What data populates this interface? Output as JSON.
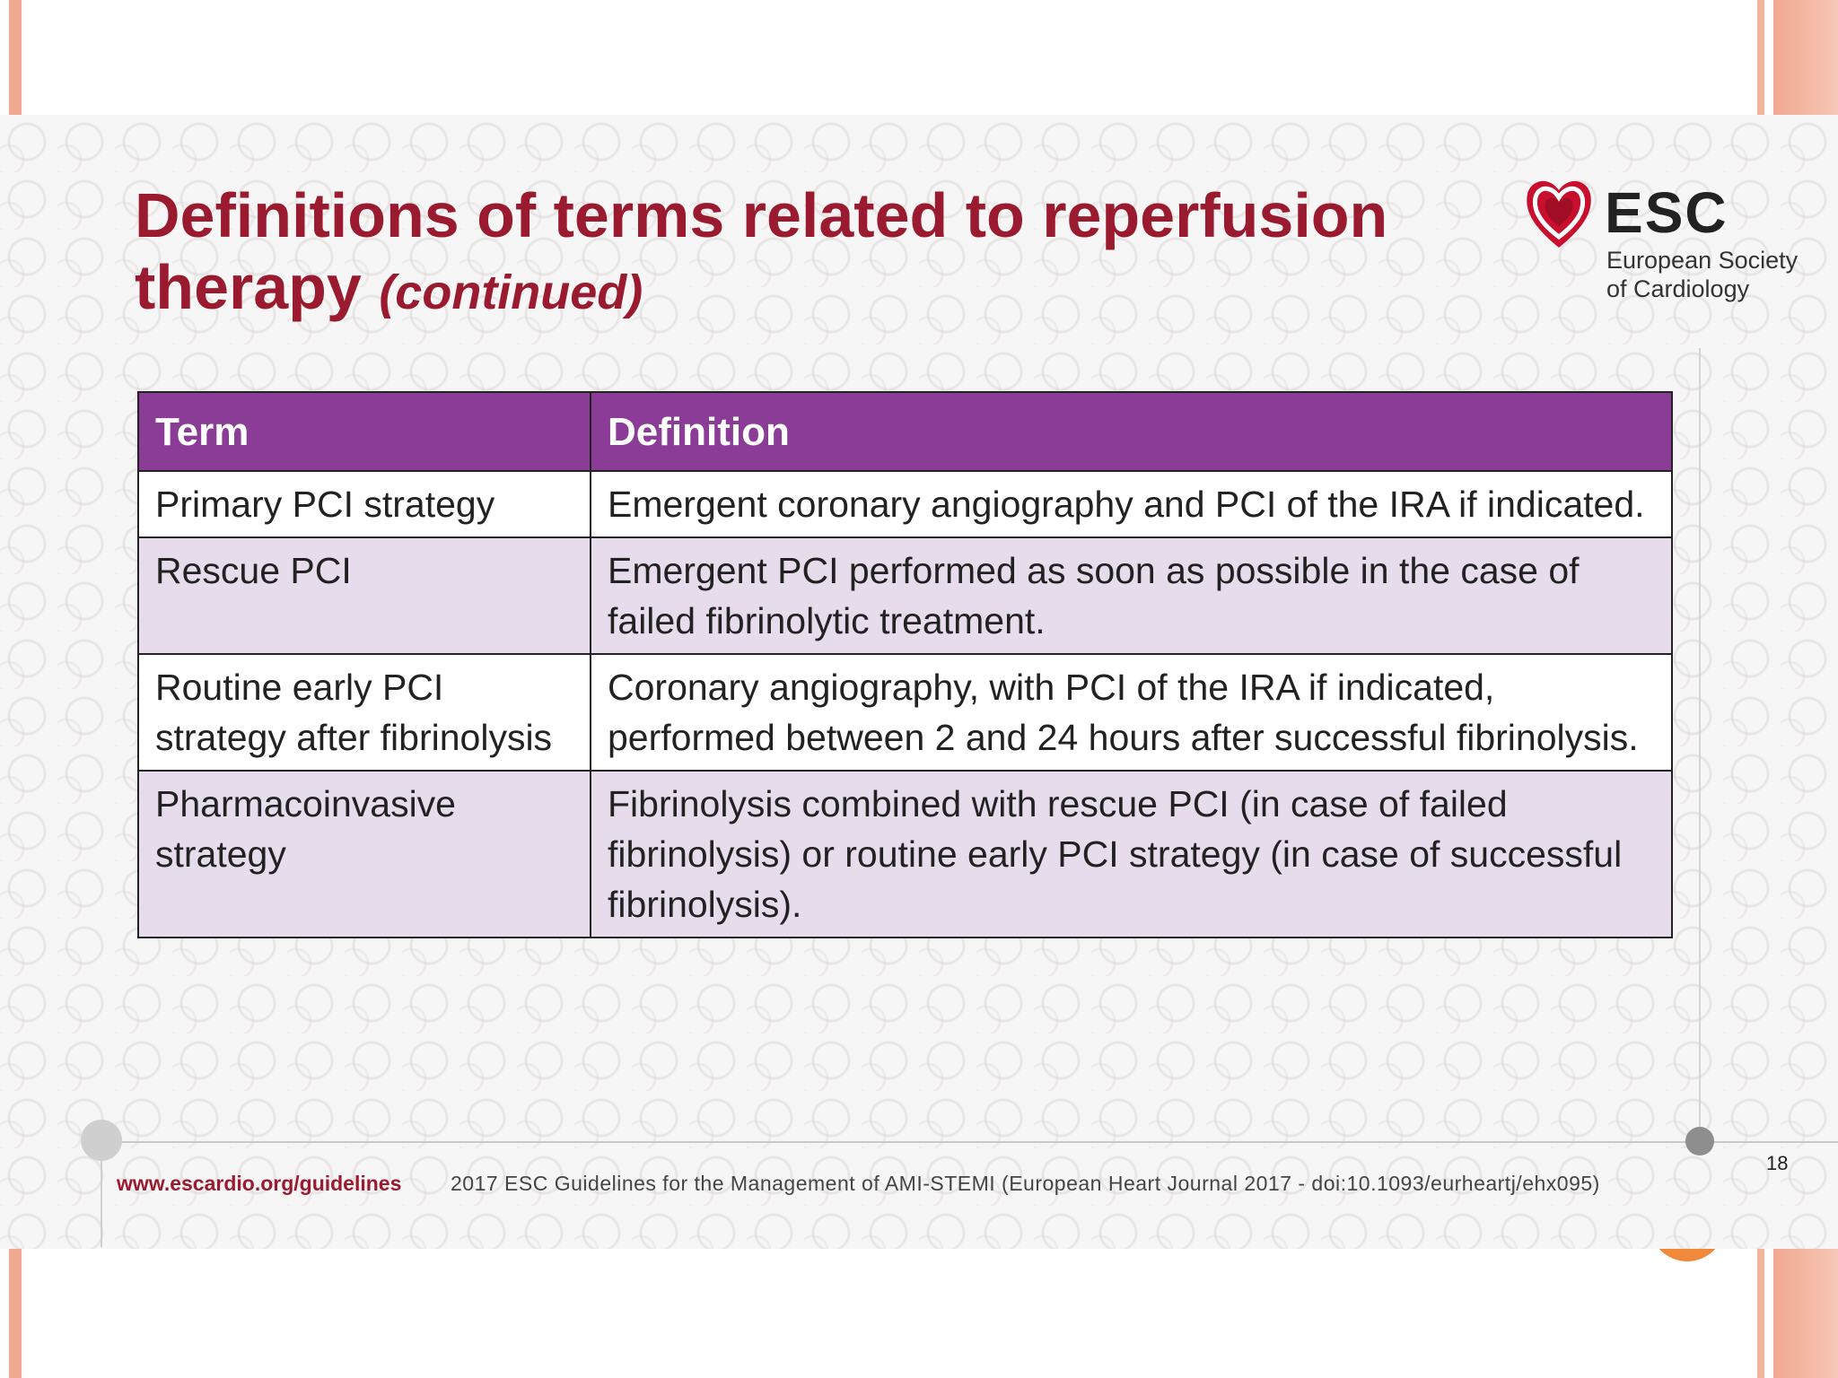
{
  "slide": {
    "title": "Definitions of terms related to reperfusion therapy",
    "title_suffix": "(continued)",
    "logo": {
      "text": "ESC",
      "subtitle_line1": "European Society",
      "subtitle_line2": "of Cardiology"
    },
    "table": {
      "headers": [
        "Term",
        "Definition"
      ],
      "rows": [
        {
          "term": "Primary PCI strategy",
          "definition": "Emergent coronary angiography and PCI of the IRA if indicated."
        },
        {
          "term": "Rescue PCI",
          "definition": "Emergent PCI performed as soon as possible in the case of failed fibrinolytic treatment."
        },
        {
          "term": "Routine early PCI strategy after fibrinolysis",
          "definition": "Coronary angiography, with PCI of the IRA if indicated, performed between 2 and 24 hours after successful fibrinolysis."
        },
        {
          "term": "Pharmacoinvasive strategy",
          "definition": "Fibrinolysis combined with rescue PCI (in case of failed fibrinolysis) or routine early PCI strategy (in case of successful fibrinolysis)."
        }
      ]
    },
    "footer": {
      "url": "www.escardio.org/guidelines",
      "citation": "2017 ESC Guidelines for the Management of AMI-STEMI (European Heart Journal 2017 - doi:10.1093/eurheartj/ehx095)",
      "page_number": "18"
    }
  },
  "colors": {
    "title": "#9a1b2f",
    "header_bg": "#8a3c97",
    "row_alt_bg": "#e7dcec",
    "frame_accent": "#f0a890",
    "orange_accent": "#f08a3a"
  }
}
